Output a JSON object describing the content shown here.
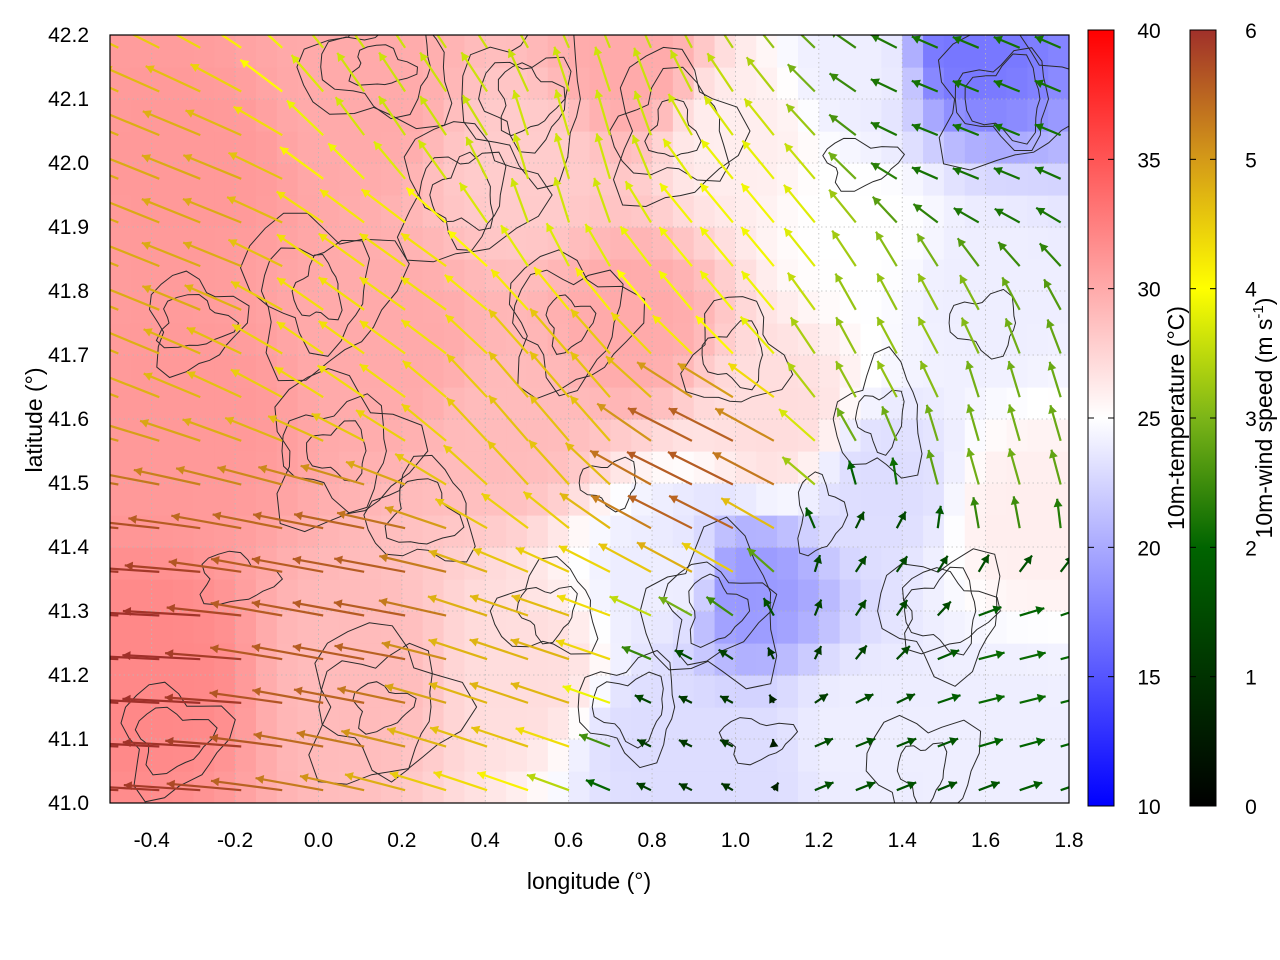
{
  "chart_data": {
    "type": "heatmap",
    "title": "",
    "xlabel": "longitude (°)",
    "ylabel": "latitude (°)",
    "xlim": [
      -0.5,
      1.8
    ],
    "ylim": [
      41.0,
      42.2
    ],
    "xticks": [
      "-0.4",
      "-0.2",
      "0.0",
      "0.2",
      "0.4",
      "0.6",
      "0.8",
      "1.0",
      "1.2",
      "1.4",
      "1.6",
      "1.8"
    ],
    "yticks": [
      "41.0",
      "41.1",
      "41.2",
      "41.3",
      "41.4",
      "41.5",
      "41.6",
      "41.7",
      "41.8",
      "41.9",
      "42.0",
      "42.1",
      "42.2"
    ],
    "grid": true,
    "temperature_colorbar": {
      "label": "10m-temperature (°C)",
      "range": [
        10,
        40
      ],
      "ticks": [
        "10",
        "15",
        "20",
        "25",
        "30",
        "35",
        "40"
      ],
      "colors": {
        "low": "#0000ff",
        "mid": "#ffffff",
        "high": "#ff0000"
      }
    },
    "wind_colorbar": {
      "label": "10m-wind speed (m s-1)",
      "label_main": "10m-wind speed (m s",
      "label_sup": "-1",
      "label_end": ")",
      "range": [
        0,
        6
      ],
      "ticks": [
        "0",
        "1",
        "2",
        "3",
        "4",
        "5",
        "6"
      ],
      "colors": [
        "#000000",
        "#006400",
        "#7cb518",
        "#ffff00",
        "#d49a18",
        "#a0302a"
      ]
    },
    "temperature_anchors": [
      {
        "lon": -0.4,
        "lat": 41.2,
        "t": 32
      },
      {
        "lon": -0.3,
        "lat": 41.6,
        "t": 31
      },
      {
        "lon": -0.3,
        "lat": 42.0,
        "t": 31
      },
      {
        "lon": 0.1,
        "lat": 41.2,
        "t": 29
      },
      {
        "lon": 0.2,
        "lat": 41.7,
        "t": 30
      },
      {
        "lon": 0.1,
        "lat": 42.1,
        "t": 30
      },
      {
        "lon": 0.5,
        "lat": 41.2,
        "t": 27
      },
      {
        "lon": 0.45,
        "lat": 41.6,
        "t": 29
      },
      {
        "lon": 0.5,
        "lat": 42.0,
        "t": 28
      },
      {
        "lon": 0.8,
        "lat": 41.1,
        "t": 23
      },
      {
        "lon": 0.85,
        "lat": 41.35,
        "t": 24
      },
      {
        "lon": 0.75,
        "lat": 41.75,
        "t": 30
      },
      {
        "lon": 0.75,
        "lat": 42.15,
        "t": 30
      },
      {
        "lon": 1.0,
        "lat": 41.05,
        "t": 23
      },
      {
        "lon": 1.02,
        "lat": 41.33,
        "t": 19
      },
      {
        "lon": 1.1,
        "lat": 41.6,
        "t": 27
      },
      {
        "lon": 1.0,
        "lat": 42.05,
        "t": 26
      },
      {
        "lon": 1.3,
        "lat": 41.1,
        "t": 24
      },
      {
        "lon": 1.35,
        "lat": 41.5,
        "t": 23
      },
      {
        "lon": 1.3,
        "lat": 41.9,
        "t": 25
      },
      {
        "lon": 1.3,
        "lat": 42.15,
        "t": 24
      },
      {
        "lon": 1.65,
        "lat": 41.1,
        "t": 24
      },
      {
        "lon": 1.7,
        "lat": 41.45,
        "t": 26
      },
      {
        "lon": 1.6,
        "lat": 41.8,
        "t": 24
      },
      {
        "lon": 1.55,
        "lat": 42.18,
        "t": 17
      }
    ],
    "wind_field": {
      "grid_lon": [
        -0.48,
        1.78,
        24
      ],
      "grid_lat": [
        41.02,
        42.18,
        18
      ],
      "anchors": [
        {
          "lon": -0.4,
          "lat": 41.2,
          "u": -6.0,
          "v": 0.3
        },
        {
          "lon": -0.3,
          "lat": 41.9,
          "u": -4.5,
          "v": 1.8
        },
        {
          "lon": 0.1,
          "lat": 41.3,
          "u": -5.5,
          "v": 1.0
        },
        {
          "lon": 0.2,
          "lat": 41.8,
          "u": -3.5,
          "v": 2.5
        },
        {
          "lon": 0.3,
          "lat": 42.1,
          "u": -2.0,
          "v": 3.0
        },
        {
          "lon": 0.55,
          "lat": 41.2,
          "u": -4.5,
          "v": 1.5
        },
        {
          "lon": 0.6,
          "lat": 41.6,
          "u": -3.0,
          "v": 3.5
        },
        {
          "lon": 0.6,
          "lat": 42.0,
          "u": -1.0,
          "v": 3.5
        },
        {
          "lon": 0.95,
          "lat": 41.5,
          "u": -5.0,
          "v": 2.5
        },
        {
          "lon": 0.9,
          "lat": 41.1,
          "u": -1.0,
          "v": 0.5
        },
        {
          "lon": 1.0,
          "lat": 41.85,
          "u": -2.5,
          "v": 3.0
        },
        {
          "lon": 1.3,
          "lat": 41.05,
          "u": 1.5,
          "v": 0.6
        },
        {
          "lon": 1.35,
          "lat": 41.35,
          "u": 0.8,
          "v": 1.2
        },
        {
          "lon": 1.4,
          "lat": 41.7,
          "u": -1.5,
          "v": 2.8
        },
        {
          "lon": 1.65,
          "lat": 41.2,
          "u": 2.0,
          "v": 0.5
        },
        {
          "lon": 1.6,
          "lat": 41.55,
          "u": -0.8,
          "v": 2.8
        },
        {
          "lon": 1.6,
          "lat": 42.05,
          "u": -2.0,
          "v": 0.8
        }
      ]
    }
  }
}
